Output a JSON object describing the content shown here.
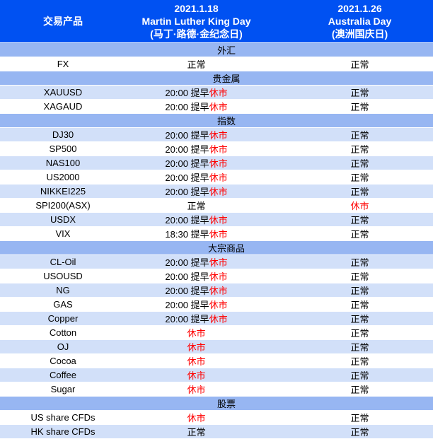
{
  "table": {
    "colors": {
      "header_bg": "#0051f2",
      "header_text": "#ffffff",
      "section_bg": "#97b6f2",
      "row_bg": "#ffffff",
      "row_alt_bg": "#d2e0f9",
      "normal_text": "#000000",
      "closed_text": "#ff0000"
    },
    "header": {
      "product_label": "交易产品",
      "day1": [
        "2021.1.18",
        "Martin Luther King Day",
        "(马丁·路德·金纪念日)"
      ],
      "day2": [
        "2021.1.26",
        "Australia Day",
        "(澳洲国庆日)"
      ]
    },
    "status_labels": {
      "normal": "正常",
      "closed": "休市",
      "early_close_2000": "20:00 提早",
      "early_close_1830": "18:30 提早"
    },
    "rows": [
      {
        "type": "section",
        "label": "外汇"
      },
      {
        "type": "data",
        "shaded": false,
        "product": "FX",
        "d1": {
          "t": "正常",
          "r": ""
        },
        "d2": {
          "t": "正常",
          "r": ""
        }
      },
      {
        "type": "section",
        "label": "贵金属"
      },
      {
        "type": "data",
        "shaded": true,
        "product": "XAUUSD",
        "d1": {
          "t": "20:00 提早",
          "r": "休市"
        },
        "d2": {
          "t": "正常",
          "r": ""
        }
      },
      {
        "type": "data",
        "shaded": false,
        "product": "XAGAUD",
        "d1": {
          "t": "20:00 提早",
          "r": "休市"
        },
        "d2": {
          "t": "正常",
          "r": ""
        }
      },
      {
        "type": "section",
        "label": "指数"
      },
      {
        "type": "data",
        "shaded": true,
        "product": "DJ30",
        "d1": {
          "t": "20:00 提早",
          "r": "休市"
        },
        "d2": {
          "t": "正常",
          "r": ""
        }
      },
      {
        "type": "data",
        "shaded": false,
        "product": "SP500",
        "d1": {
          "t": "20:00 提早",
          "r": "休市"
        },
        "d2": {
          "t": "正常",
          "r": ""
        }
      },
      {
        "type": "data",
        "shaded": true,
        "product": "NAS100",
        "d1": {
          "t": "20:00 提早",
          "r": "休市"
        },
        "d2": {
          "t": "正常",
          "r": ""
        }
      },
      {
        "type": "data",
        "shaded": false,
        "product": "US2000",
        "d1": {
          "t": "20:00 提早",
          "r": "休市"
        },
        "d2": {
          "t": "正常",
          "r": ""
        }
      },
      {
        "type": "data",
        "shaded": true,
        "product": "NIKKEI225",
        "d1": {
          "t": "20:00 提早",
          "r": "休市"
        },
        "d2": {
          "t": "正常",
          "r": ""
        }
      },
      {
        "type": "data",
        "shaded": false,
        "product": "SPI200(ASX)",
        "d1": {
          "t": "正常",
          "r": ""
        },
        "d2": {
          "t": "",
          "r": "休市"
        }
      },
      {
        "type": "data",
        "shaded": true,
        "product": "USDX",
        "d1": {
          "t": "20:00 提早",
          "r": "休市"
        },
        "d2": {
          "t": "正常",
          "r": ""
        }
      },
      {
        "type": "data",
        "shaded": false,
        "product": "VIX",
        "d1": {
          "t": "18:30 提早",
          "r": "休市"
        },
        "d2": {
          "t": "正常",
          "r": ""
        }
      },
      {
        "type": "section",
        "label": "大宗商品"
      },
      {
        "type": "data",
        "shaded": true,
        "product": "CL-Oil",
        "d1": {
          "t": "20:00 提早",
          "r": "休市"
        },
        "d2": {
          "t": "正常",
          "r": ""
        }
      },
      {
        "type": "data",
        "shaded": false,
        "product": "USOUSD",
        "d1": {
          "t": "20:00 提早",
          "r": "休市"
        },
        "d2": {
          "t": "正常",
          "r": ""
        }
      },
      {
        "type": "data",
        "shaded": true,
        "product": "NG",
        "d1": {
          "t": "20:00 提早",
          "r": "休市"
        },
        "d2": {
          "t": "正常",
          "r": ""
        }
      },
      {
        "type": "data",
        "shaded": false,
        "product": "GAS",
        "d1": {
          "t": "20:00 提早",
          "r": "休市"
        },
        "d2": {
          "t": "正常",
          "r": ""
        }
      },
      {
        "type": "data",
        "shaded": true,
        "product": "Copper",
        "d1": {
          "t": "20:00 提早",
          "r": "休市"
        },
        "d2": {
          "t": "正常",
          "r": ""
        }
      },
      {
        "type": "data",
        "shaded": false,
        "product": "Cotton",
        "d1": {
          "t": "",
          "r": "休市"
        },
        "d2": {
          "t": "正常",
          "r": ""
        }
      },
      {
        "type": "data",
        "shaded": true,
        "product": "OJ",
        "d1": {
          "t": "",
          "r": "休市"
        },
        "d2": {
          "t": "正常",
          "r": ""
        }
      },
      {
        "type": "data",
        "shaded": false,
        "product": "Cocoa",
        "d1": {
          "t": "",
          "r": "休市"
        },
        "d2": {
          "t": "正常",
          "r": ""
        }
      },
      {
        "type": "data",
        "shaded": true,
        "product": "Coffee",
        "d1": {
          "t": "",
          "r": "休市"
        },
        "d2": {
          "t": "正常",
          "r": ""
        }
      },
      {
        "type": "data",
        "shaded": false,
        "product": "Sugar",
        "d1": {
          "t": "",
          "r": "休市"
        },
        "d2": {
          "t": "正常",
          "r": ""
        }
      },
      {
        "type": "section",
        "label": "股票"
      },
      {
        "type": "data",
        "shaded": false,
        "product": "US share CFDs",
        "d1": {
          "t": "",
          "r": "休市"
        },
        "d2": {
          "t": "正常",
          "r": ""
        }
      },
      {
        "type": "data",
        "shaded": true,
        "product": "HK share CFDs",
        "d1": {
          "t": "正常",
          "r": ""
        },
        "d2": {
          "t": "正常",
          "r": ""
        }
      }
    ]
  }
}
